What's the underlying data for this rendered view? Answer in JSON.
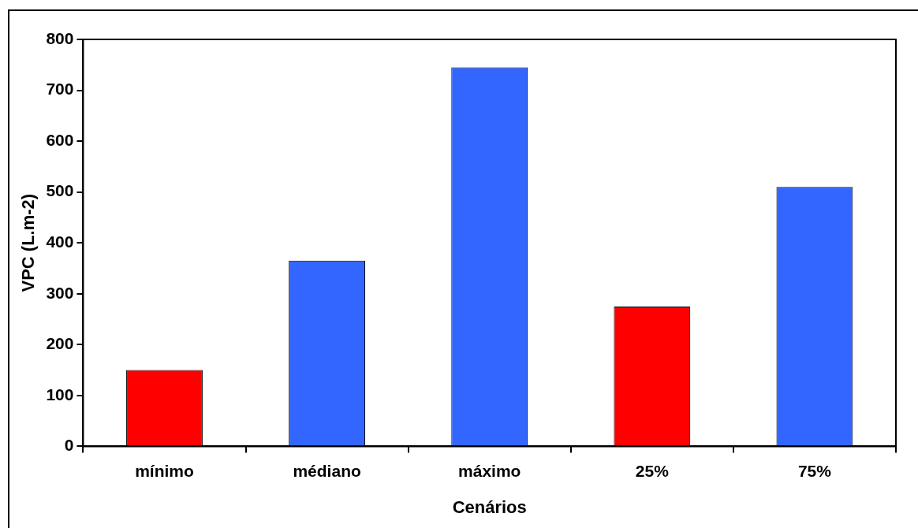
{
  "chart_data": {
    "type": "bar",
    "xlabel": "Cenários",
    "ylabel": "VPC (L.m-2)",
    "categories": [
      "mínimo",
      "médiano",
      "máximo",
      "25%",
      "75%"
    ],
    "values": [
      150,
      365,
      745,
      275,
      510
    ],
    "colors": [
      "#ff0000",
      "#3366ff",
      "#3366ff",
      "#ff0000",
      "#3366ff"
    ],
    "ylim": [
      0,
      800
    ],
    "yticks": [
      0,
      100,
      200,
      300,
      400,
      500,
      600,
      700,
      800
    ],
    "grid": false,
    "legend": false
  }
}
